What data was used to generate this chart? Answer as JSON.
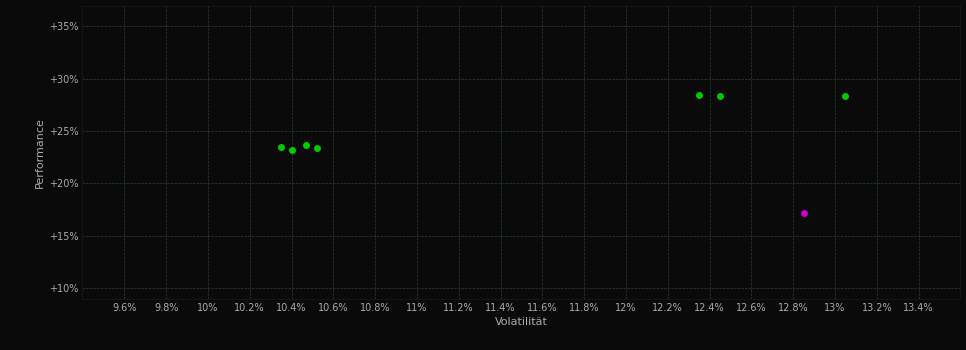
{
  "background_color": "#0a0a0a",
  "plot_bg_color": "#0a0a0a",
  "grid_color": "#2a4a2a",
  "text_color": "#aaaaaa",
  "xlabel": "Volatilität",
  "ylabel": "Performance",
  "xlim": [
    0.094,
    0.136
  ],
  "ylim": [
    0.09,
    0.37
  ],
  "xticks": [
    0.096,
    0.098,
    0.1,
    0.102,
    0.104,
    0.106,
    0.108,
    0.11,
    0.112,
    0.114,
    0.116,
    0.118,
    0.12,
    0.122,
    0.124,
    0.126,
    0.128,
    0.13,
    0.132,
    0.134
  ],
  "yticks": [
    0.1,
    0.15,
    0.2,
    0.25,
    0.3,
    0.35
  ],
  "xtick_labels": [
    "9.6%",
    "9.8%",
    "10%",
    "10.2%",
    "10.4%",
    "10.6%",
    "10.8%",
    "11%",
    "11.2%",
    "11.4%",
    "11.6%",
    "11.8%",
    "12%",
    "12.2%",
    "12.4%",
    "12.6%",
    "12.8%",
    "13%",
    "13.2%",
    "13.4%"
  ],
  "ytick_labels": [
    "+10%",
    "+15%",
    "+20%",
    "+25%",
    "+30%",
    "+35%"
  ],
  "green_points": [
    [
      0.1035,
      0.235
    ],
    [
      0.104,
      0.232
    ],
    [
      0.1047,
      0.237
    ],
    [
      0.1052,
      0.234
    ],
    [
      0.1235,
      0.285
    ],
    [
      0.1245,
      0.284
    ],
    [
      0.1305,
      0.284
    ]
  ],
  "magenta_points": [
    [
      0.1285,
      0.172
    ]
  ],
  "green_color": "#00cc00",
  "magenta_color": "#cc00cc",
  "marker_size": 5
}
